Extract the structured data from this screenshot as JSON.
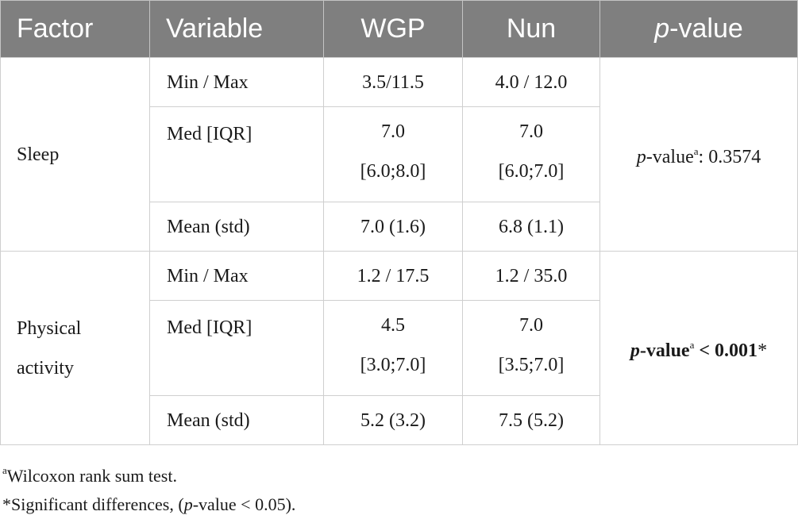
{
  "headers": {
    "factor": "Factor",
    "variable": "Variable",
    "wgp": "WGP",
    "nun": "Nun",
    "pvalue_italic": "p",
    "pvalue_rest": "-value"
  },
  "groups": [
    {
      "factor_line1": "Sleep",
      "rows": [
        {
          "variable": "Min / Max",
          "wgp": "3.5/11.5",
          "nun": "4.0 / 12.0"
        },
        {
          "variable": "Med [IQR]",
          "wgp_1": "7.0",
          "wgp_2": "[6.0;8.0]",
          "nun_1": "7.0",
          "nun_2": "[6.0;7.0]"
        },
        {
          "variable": "Mean (std)",
          "wgp": "7.0 (1.6)",
          "nun": "6.8 (1.1)"
        }
      ],
      "pvalue": {
        "p": "p",
        "label": "-value",
        "sup": "a",
        "rest": ": 0.3574"
      }
    },
    {
      "factor_line1": "Physical",
      "factor_line2": "activity",
      "rows": [
        {
          "variable": "Min / Max",
          "wgp": "1.2 / 17.5",
          "nun": "1.2 / 35.0"
        },
        {
          "variable": "Med [IQR]",
          "wgp_1": "4.5",
          "wgp_2": "[3.0;7.0]",
          "nun_1": "7.0",
          "nun_2": "[3.5;7.0]"
        },
        {
          "variable": "Mean (std)",
          "wgp": "5.2 (3.2)",
          "nun": "7.5 (5.2)"
        }
      ],
      "pvalue": {
        "p": "p",
        "label": "-value",
        "sup": "a",
        "rest": " < 0.001",
        "star": "*"
      }
    }
  ],
  "footnotes": {
    "a_sup": "a",
    "a_text": "Wilcoxon rank sum test.",
    "star_pre": "*Significant differences, (",
    "star_p": "p",
    "star_post": "-value < 0.05)."
  }
}
